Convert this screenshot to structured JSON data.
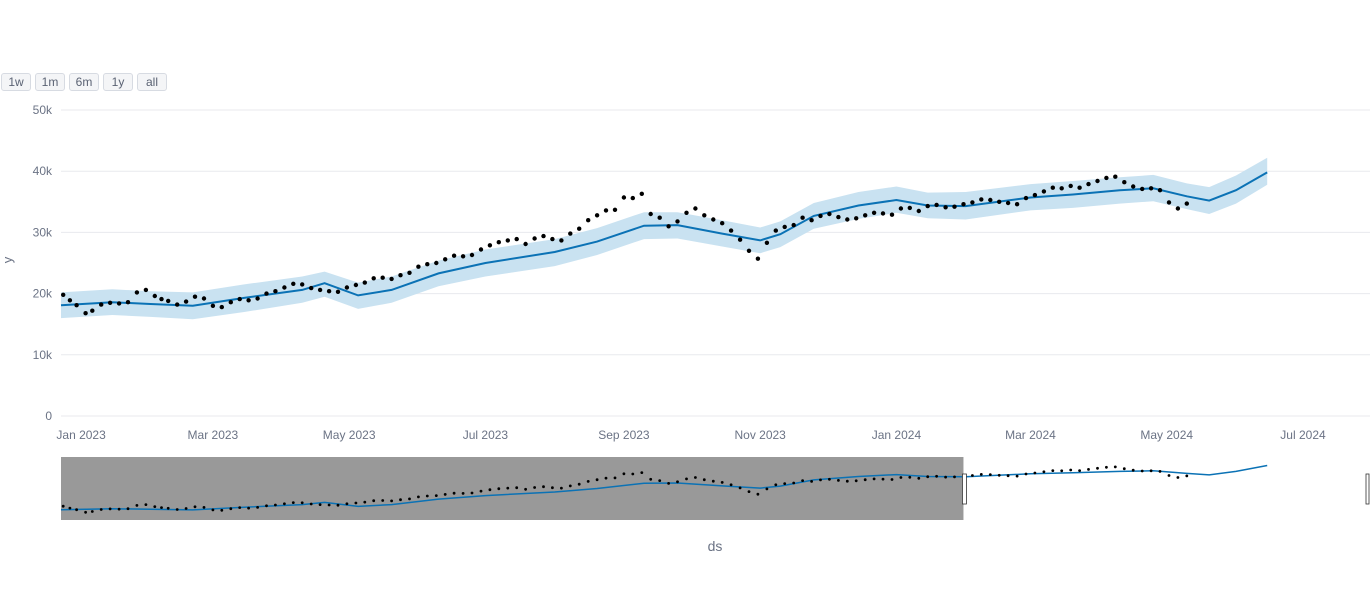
{
  "range_buttons": [
    "1w",
    "1m",
    "6m",
    "1y",
    "all"
  ],
  "colors": {
    "band": "#c9e2f1",
    "trend": "#0b72b5",
    "points": "#000000",
    "grid": "#e8eaee",
    "tick_text": "#6b7385",
    "selector_mask": "#999999"
  },
  "chart_data": {
    "type": "line",
    "xlabel": "ds",
    "ylabel": "y",
    "ylim": [
      0,
      50000
    ],
    "xlim": [
      "2022-12-23",
      "2024-07-31"
    ],
    "grid": true,
    "y_ticks": [
      0,
      10000,
      20000,
      30000,
      40000,
      50000
    ],
    "y_tick_labels": [
      "0",
      "10k",
      "20k",
      "30k",
      "40k",
      "50k"
    ],
    "x_ticks": [
      "2023-01-01",
      "2023-03-01",
      "2023-05-01",
      "2023-07-01",
      "2023-09-01",
      "2023-11-01",
      "2024-01-01",
      "2024-03-01",
      "2024-05-01",
      "2024-07-01"
    ],
    "x_tick_labels": [
      "Jan 2023",
      "Mar 2023",
      "May 2023",
      "Jul 2023",
      "Sep 2023",
      "Nov 2023",
      "Jan 2024",
      "Mar 2024",
      "May 2024",
      "Jul 2024"
    ],
    "series": [
      {
        "kind": "uncertainty_band",
        "x": [
          "2022-12-23",
          "2023-01-15",
          "2023-02-01",
          "2023-02-20",
          "2023-03-15",
          "2023-04-10",
          "2023-04-20",
          "2023-05-05",
          "2023-05-20",
          "2023-06-10",
          "2023-07-01",
          "2023-08-01",
          "2023-08-20",
          "2023-09-10",
          "2023-09-25",
          "2023-10-15",
          "2023-11-01",
          "2023-11-10",
          "2023-11-25",
          "2023-12-15",
          "2024-01-01",
          "2024-01-15",
          "2024-02-01",
          "2024-03-01",
          "2024-03-20",
          "2024-04-10",
          "2024-04-25",
          "2024-05-10",
          "2024-05-20",
          "2024-06-01",
          "2024-06-15"
        ],
        "lower": [
          16000,
          16500,
          16200,
          15800,
          17000,
          18500,
          19500,
          17500,
          18500,
          21200,
          22800,
          24500,
          26300,
          28900,
          29000,
          27700,
          26600,
          27600,
          30600,
          32200,
          33200,
          32300,
          32100,
          33600,
          34000,
          34700,
          35100,
          33800,
          33000,
          34700,
          37800
        ],
        "upper": [
          20200,
          20700,
          20400,
          20200,
          21500,
          22800,
          23600,
          21800,
          22800,
          25400,
          27200,
          28900,
          30700,
          33300,
          33300,
          32000,
          30800,
          31800,
          34800,
          36600,
          37500,
          36500,
          36600,
          37900,
          38400,
          39000,
          39400,
          38000,
          37400,
          39300,
          42200
        ]
      },
      {
        "kind": "trend",
        "x": [
          "2022-12-23",
          "2023-01-15",
          "2023-02-01",
          "2023-02-20",
          "2023-03-15",
          "2023-04-10",
          "2023-04-20",
          "2023-05-05",
          "2023-05-20",
          "2023-06-10",
          "2023-07-01",
          "2023-08-01",
          "2023-08-20",
          "2023-09-10",
          "2023-09-25",
          "2023-10-15",
          "2023-11-01",
          "2023-11-10",
          "2023-11-25",
          "2023-12-15",
          "2024-01-01",
          "2024-01-15",
          "2024-02-01",
          "2024-03-01",
          "2024-03-20",
          "2024-04-10",
          "2024-04-25",
          "2024-05-10",
          "2024-05-20",
          "2024-06-01",
          "2024-06-15"
        ],
        "y": [
          18100,
          18600,
          18300,
          18000,
          19300,
          20600,
          21700,
          19700,
          20600,
          23300,
          25000,
          26800,
          28500,
          31100,
          31200,
          29800,
          28700,
          29700,
          32700,
          34400,
          35300,
          34400,
          34300,
          35700,
          36200,
          36900,
          37200,
          35900,
          35200,
          36900,
          39800
        ]
      },
      {
        "kind": "observations",
        "x": [
          "2022-12-24",
          "2022-12-27",
          "2022-12-30",
          "2023-01-03",
          "2023-01-06",
          "2023-01-10",
          "2023-01-14",
          "2023-01-18",
          "2023-01-22",
          "2023-01-26",
          "2023-01-30",
          "2023-02-03",
          "2023-02-06",
          "2023-02-09",
          "2023-02-13",
          "2023-02-17",
          "2023-02-21",
          "2023-02-25",
          "2023-03-01",
          "2023-03-05",
          "2023-03-09",
          "2023-03-13",
          "2023-03-17",
          "2023-03-21",
          "2023-03-25",
          "2023-03-29",
          "2023-04-02",
          "2023-04-06",
          "2023-04-10",
          "2023-04-14",
          "2023-04-18",
          "2023-04-22",
          "2023-04-26",
          "2023-04-30",
          "2023-05-04",
          "2023-05-08",
          "2023-05-12",
          "2023-05-16",
          "2023-05-20",
          "2023-05-24",
          "2023-05-28",
          "2023-06-01",
          "2023-06-05",
          "2023-06-09",
          "2023-06-13",
          "2023-06-17",
          "2023-06-21",
          "2023-06-25",
          "2023-06-29",
          "2023-07-03",
          "2023-07-07",
          "2023-07-11",
          "2023-07-15",
          "2023-07-19",
          "2023-07-23",
          "2023-07-27",
          "2023-07-31",
          "2023-08-04",
          "2023-08-08",
          "2023-08-12",
          "2023-08-16",
          "2023-08-20",
          "2023-08-24",
          "2023-08-28",
          "2023-09-01",
          "2023-09-05",
          "2023-09-09",
          "2023-09-13",
          "2023-09-17",
          "2023-09-21",
          "2023-09-25",
          "2023-09-29",
          "2023-10-03",
          "2023-10-07",
          "2023-10-11",
          "2023-10-15",
          "2023-10-19",
          "2023-10-23",
          "2023-10-27",
          "2023-10-31",
          "2023-11-04",
          "2023-11-08",
          "2023-11-12",
          "2023-11-16",
          "2023-11-20",
          "2023-11-24",
          "2023-11-28",
          "2023-12-02",
          "2023-12-06",
          "2023-12-10",
          "2023-12-14",
          "2023-12-18",
          "2023-12-22",
          "2023-12-26",
          "2023-12-30",
          "2024-01-03",
          "2024-01-07",
          "2024-01-11",
          "2024-01-15",
          "2024-01-19",
          "2024-01-23",
          "2024-01-27",
          "2024-01-31",
          "2024-02-04",
          "2024-02-08",
          "2024-02-12",
          "2024-02-16",
          "2024-02-20",
          "2024-02-24",
          "2024-02-28",
          "2024-03-03",
          "2024-03-07",
          "2024-03-11",
          "2024-03-15",
          "2024-03-19",
          "2024-03-23",
          "2024-03-27",
          "2024-03-31",
          "2024-04-04",
          "2024-04-08",
          "2024-04-12",
          "2024-04-16",
          "2024-04-20",
          "2024-04-24",
          "2024-04-28",
          "2024-05-02",
          "2024-05-06",
          "2024-05-10"
        ],
        "y": [
          19800,
          18900,
          18100,
          16800,
          17200,
          18200,
          18500,
          18400,
          18600,
          20200,
          20600,
          19600,
          19100,
          18800,
          18200,
          18700,
          19500,
          19200,
          18000,
          17800,
          18600,
          19100,
          18900,
          19200,
          20000,
          20400,
          21000,
          21600,
          21500,
          20900,
          20600,
          20400,
          20300,
          21000,
          21400,
          21800,
          22500,
          22600,
          22400,
          23000,
          23400,
          24400,
          24800,
          25000,
          25600,
          26200,
          26100,
          26300,
          27200,
          27900,
          28400,
          28700,
          28900,
          28100,
          29000,
          29400,
          28900,
          28700,
          29800,
          30600,
          32000,
          32800,
          33600,
          33700,
          35700,
          35600,
          36300,
          33000,
          32400,
          31000,
          31800,
          33200,
          33900,
          32800,
          32100,
          31500,
          30300,
          28800,
          27000,
          25700,
          28300,
          30300,
          30900,
          31200,
          32400,
          32000,
          32700,
          33000,
          32500,
          32100,
          32300,
          32800,
          33200,
          33100,
          32900,
          33900,
          34000,
          33500,
          34300,
          34500,
          34100,
          34200,
          34600,
          34900,
          35400,
          35300,
          35000,
          34800,
          34600,
          35600,
          36100,
          36700,
          37300,
          37200,
          37600,
          37300,
          37900,
          38400,
          38900,
          39100,
          38200,
          37500,
          37100,
          37200,
          36900,
          34900,
          33900,
          34700
        ],
        "hover_note": ""
      }
    ],
    "range_selector": {
      "selected_start": "2022-12-23",
      "selected_end": "2024-01-31"
    }
  }
}
